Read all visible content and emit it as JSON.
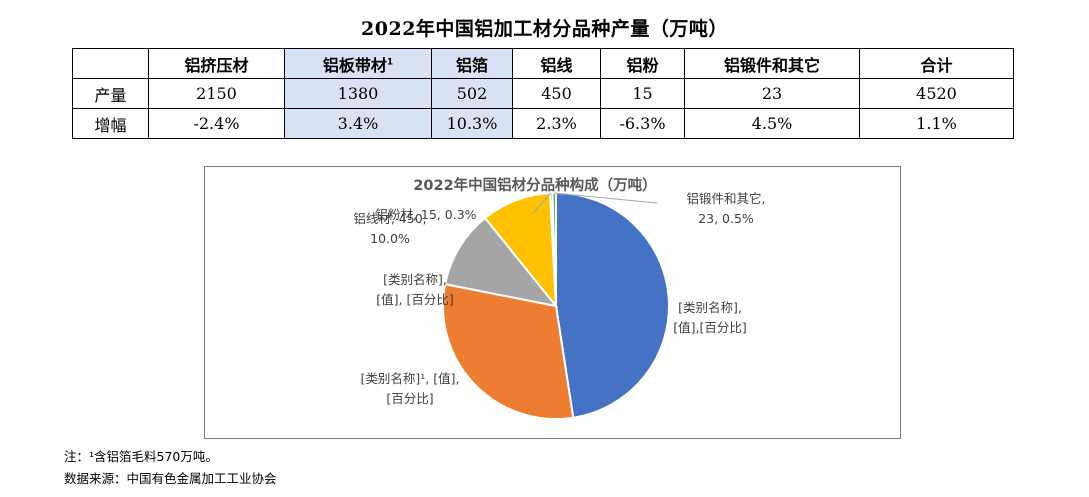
{
  "table": {
    "title": "2022年中国铝加工材分品种产量（万吨）",
    "headers": [
      "铝挤压材",
      "铝板带材",
      "铝箔",
      "铝线",
      "铝粉",
      "铝锻件和其它",
      "合计"
    ],
    "header_note_mark": "1",
    "rows": [
      {
        "label": "产量",
        "cells": [
          "2150",
          "1380",
          "502",
          "450",
          "15",
          "23",
          "4520"
        ]
      },
      {
        "label": "增幅",
        "cells": [
          "-2.4%",
          "3.4%",
          "10.3%",
          "2.3%",
          "-6.3%",
          "4.5%",
          "1.1%"
        ]
      }
    ]
  },
  "chart_data": {
    "type": "pie",
    "title": "2022年中国铝材分品种构成（万吨）",
    "slices": [
      {
        "value": 2150,
        "label_lines": [
          "[类别名称],",
          "[值],[百分比]"
        ],
        "color": "#4472c4"
      },
      {
        "value": 1380,
        "label_lines": [
          "[类别名称]¹, [值],",
          "[百分比]"
        ],
        "color": "#ed7d31"
      },
      {
        "value": 502,
        "label_lines": [
          "[类别名称],",
          "[值], [百分比]"
        ],
        "color": "#a5a5a5"
      },
      {
        "value": 450,
        "label_lines": [
          "铝线材, 450,",
          "10.0%"
        ],
        "color": "#ffc000"
      },
      {
        "value": 15,
        "label_lines": [
          "铝粉材, 15, 0.3%"
        ],
        "color": "#5b9bd5"
      },
      {
        "value": 23,
        "label_lines": [
          "铝锻件和其它,",
          "23, 0.5%"
        ],
        "color": "#70ad47"
      }
    ]
  },
  "notes": {
    "note1": "注：¹含铝箔毛料570万吨。",
    "note2": "数据来源：中国有色金属加工工业协会"
  }
}
